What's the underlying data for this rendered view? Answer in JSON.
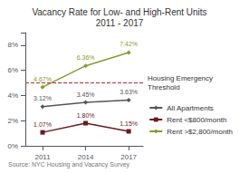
{
  "chart_data": {
    "type": "line",
    "title": "Vacancy Rate for Low- and High-Rent Units\n2011 - 2017",
    "source": "Source: NYC Housing and Vacancy Survey",
    "x": [
      2011,
      2014,
      2017
    ],
    "xlim": [
      2009.8,
      2018.0
    ],
    "xticks": [
      2011,
      2014,
      2017
    ],
    "ylim": [
      0,
      9
    ],
    "yticks": [
      {
        "value": 0,
        "label": "0%"
      },
      {
        "value": 2,
        "label": "2%"
      },
      {
        "value": 4,
        "label": "4%"
      },
      {
        "value": 6,
        "label": "6%"
      },
      {
        "value": 8,
        "label": "8%"
      }
    ],
    "grid": false,
    "legend": "right",
    "data_labels": true,
    "series": [
      {
        "name": "All Apartments",
        "color": "#555555",
        "marker": "diamond",
        "values": [
          3.12,
          3.45,
          3.63
        ],
        "value_labels": [
          "3.12%",
          "3.45%",
          "3.63%"
        ]
      },
      {
        "name": "Rent <$800/month",
        "color": "#6b1a1a",
        "marker": "square",
        "values": [
          1.07,
          1.8,
          1.15
        ],
        "value_labels": [
          "1.07%",
          "1.80%",
          "1.15%"
        ]
      },
      {
        "name": "Rent >$2,800/month",
        "color": "#8a9a30",
        "marker": "diamond",
        "values": [
          4.67,
          6.36,
          7.42
        ],
        "value_labels": [
          "4.67%",
          "6.36%",
          "7.42%"
        ]
      }
    ],
    "annotations": [
      {
        "text": "Housing Emergency\nThreshold",
        "y": 5.0,
        "color": "#b03030",
        "line_style": "dashed"
      }
    ]
  }
}
